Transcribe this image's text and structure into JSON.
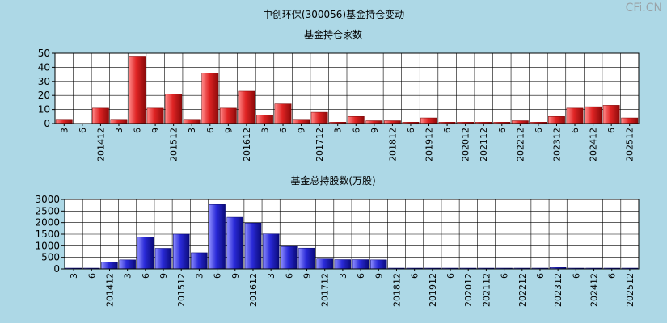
{
  "page": {
    "title": "中创环保(300056)基金持仓变动",
    "watermark": "CFi.CN"
  },
  "colors": {
    "background": "#add8e6",
    "plot_bg": "#ffffff",
    "grid": "#000000",
    "bar_red": "#dd2222",
    "bar_blue": "#2b2bd6"
  },
  "chart_data": [
    {
      "type": "bar",
      "title": "基金持仓家数",
      "xlabel": "",
      "ylabel": "",
      "ylim": [
        0,
        50
      ],
      "yticks": [
        0,
        10,
        20,
        30,
        40,
        50
      ],
      "grid": true,
      "categories": [
        "3",
        "6",
        "201412",
        "3",
        "6",
        "9",
        "201512",
        "3",
        "6",
        "9",
        "201612",
        "3",
        "6",
        "9",
        "201712",
        "3",
        "6",
        "9",
        "201812",
        "6",
        "201912",
        "6",
        "202012",
        "202112",
        "6",
        "202212",
        "6",
        "202312",
        "6",
        "202412",
        "6",
        "202512"
      ],
      "values": [
        3,
        0,
        11,
        3,
        48,
        11,
        21,
        3,
        36,
        11,
        23,
        6,
        14,
        3,
        8,
        1,
        5,
        2,
        2,
        1,
        4,
        1,
        1,
        1,
        1,
        2,
        1,
        5,
        11,
        12,
        13,
        4
      ]
    },
    {
      "type": "bar",
      "title": "基金总持股数(万股)",
      "xlabel": "",
      "ylabel": "",
      "ylim": [
        0,
        3000
      ],
      "yticks": [
        0,
        500,
        1000,
        1500,
        2000,
        2500,
        3000
      ],
      "grid": true,
      "categories": [
        "3",
        "6",
        "201412",
        "3",
        "6",
        "9",
        "201512",
        "3",
        "6",
        "9",
        "201612",
        "3",
        "6",
        "9",
        "201712",
        "3",
        "6",
        "9",
        "201812",
        "6",
        "201912",
        "6",
        "202012",
        "202112",
        "6",
        "202212",
        "6",
        "202312",
        "6",
        "202412",
        "6",
        "202512"
      ],
      "values": [
        30,
        30,
        290,
        390,
        1370,
        890,
        1500,
        700,
        2780,
        2230,
        1980,
        1510,
        970,
        900,
        430,
        400,
        400,
        390,
        20,
        20,
        30,
        20,
        20,
        20,
        20,
        20,
        30,
        60,
        30,
        30,
        30,
        30
      ]
    }
  ]
}
